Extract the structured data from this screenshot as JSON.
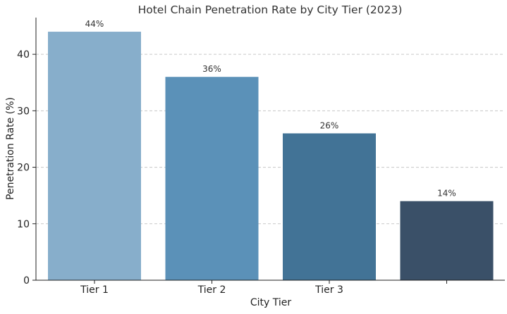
{
  "chart_data": {
    "type": "bar",
    "title": "Hotel Chain Penetration Rate by City Tier (2023)",
    "xlabel": "City Tier",
    "ylabel": "Penetration Rate (%)",
    "categories": [
      "Tier 1",
      "Tier 2",
      "Tier 3",
      ""
    ],
    "values": [
      44,
      36,
      26,
      14
    ],
    "data_labels": [
      "44%",
      "36%",
      "26%",
      "14%"
    ],
    "colors": [
      "#87AECB",
      "#5B91B8",
      "#427396",
      "#3A5068"
    ],
    "ylim": [
      0,
      46
    ],
    "yticks": [
      0,
      10,
      20,
      30,
      40
    ],
    "grid": true,
    "grid_axis": "y",
    "legend": "none"
  }
}
